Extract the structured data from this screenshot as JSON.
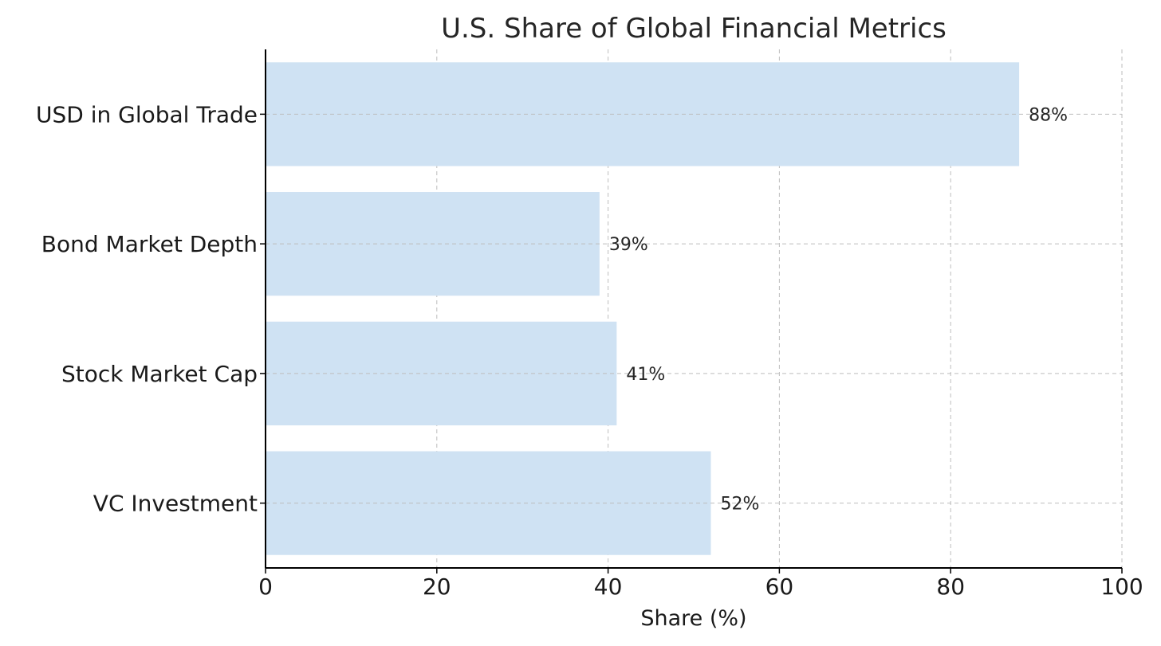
{
  "chart_data": {
    "type": "bar",
    "orientation": "horizontal",
    "title": "U.S. Share of Global Financial Metrics",
    "xlabel": "Share (%)",
    "ylabel": "",
    "categories": [
      "USD in Global Trade",
      "Bond Market Depth",
      "Stock Market Cap",
      "VC Investment"
    ],
    "values": [
      88,
      39,
      41,
      52
    ],
    "data_labels": [
      "88%",
      "39%",
      "41%",
      "52%"
    ],
    "xlim": [
      0,
      100
    ],
    "xticks": [
      0,
      20,
      40,
      60,
      80,
      100
    ],
    "xtick_labels": [
      "0",
      "20",
      "40",
      "60",
      "80",
      "100"
    ],
    "grid": true,
    "bar_color": "#cfe2f3",
    "legend": false
  }
}
